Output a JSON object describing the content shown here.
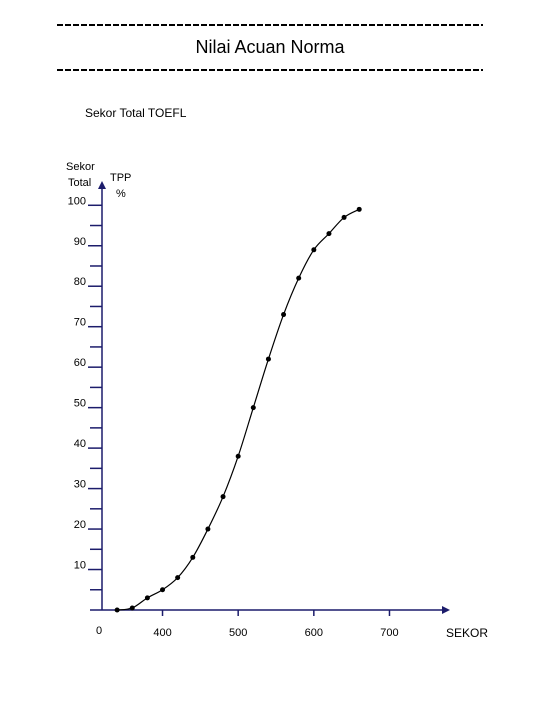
{
  "chart_data": {
    "type": "scatter",
    "title": "Nilai Acuan Norma",
    "subtitle": "Sekor Total TOEFL",
    "ylabel": [
      "Sekor",
      "Total"
    ],
    "ylabel2": [
      "TPP",
      "%"
    ],
    "xlabel": "SEKOR",
    "origin_label": "0",
    "x": [
      340,
      360,
      380,
      400,
      420,
      440,
      460,
      480,
      500,
      520,
      540,
      560,
      580,
      600,
      620,
      640,
      660
    ],
    "values": [
      0,
      0.5,
      3,
      5,
      8,
      13,
      20,
      28,
      38,
      50,
      62,
      73,
      82,
      89,
      93,
      97,
      99
    ],
    "color": "#000000",
    "axis_color": "#1c1c6b",
    "xlim": [
      320,
      780
    ],
    "ylim": [
      0,
      106
    ],
    "xticks": [
      400,
      500,
      600,
      700
    ],
    "yticks": [
      10,
      20,
      30,
      40,
      50,
      60,
      70,
      80,
      90,
      100
    ],
    "yminor_ticks": [
      5,
      15,
      25,
      35,
      45,
      55,
      65,
      75,
      85,
      95
    ],
    "fit_line": true
  }
}
